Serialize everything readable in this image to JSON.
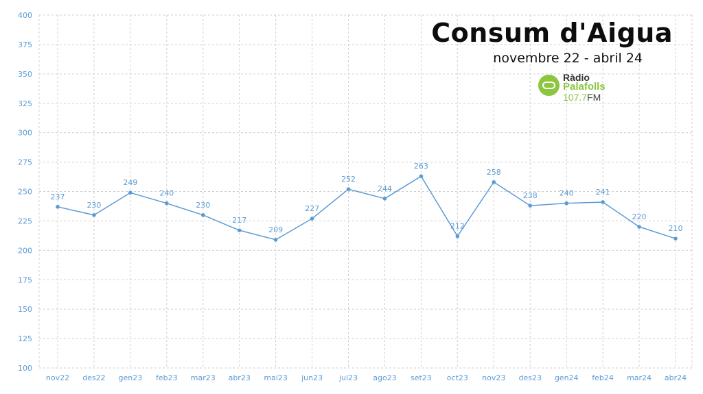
{
  "header": {
    "title": "Consum d'Aigua",
    "subtitle": "novembre 22 - abril 24"
  },
  "logo": {
    "line1": "Ràdio",
    "line2": "Palafolls",
    "frequency": "107.7",
    "band": "FM"
  },
  "colors": {
    "series": "#5b9bd5",
    "axis_text": "#5b9bd5",
    "grid": "#cfcfcf",
    "logo_green": "#8cc63f"
  },
  "chart_data": {
    "type": "line",
    "title": "Consum d'Aigua",
    "subtitle": "novembre 22 - abril 24",
    "xlabel": "",
    "ylabel": "",
    "categories": [
      "nov22",
      "des22",
      "gen23",
      "feb23",
      "mar23",
      "abr23",
      "mai23",
      "jun23",
      "jul23",
      "ago23",
      "set23",
      "oct23",
      "nov23",
      "des23",
      "gen24",
      "feb24",
      "mar24",
      "abr24"
    ],
    "series": [
      {
        "values": [
          237,
          230,
          249,
          240,
          230,
          217,
          209,
          227,
          252,
          244,
          263,
          212,
          258,
          238,
          240,
          241,
          220,
          210
        ]
      }
    ],
    "ylim": [
      100,
      400
    ],
    "yticks": [
      100,
      125,
      150,
      175,
      200,
      225,
      250,
      275,
      300,
      325,
      350,
      375,
      400
    ],
    "grid": true,
    "grid_style": "dashed",
    "data_labels": true,
    "markers": true,
    "legend": "none"
  }
}
